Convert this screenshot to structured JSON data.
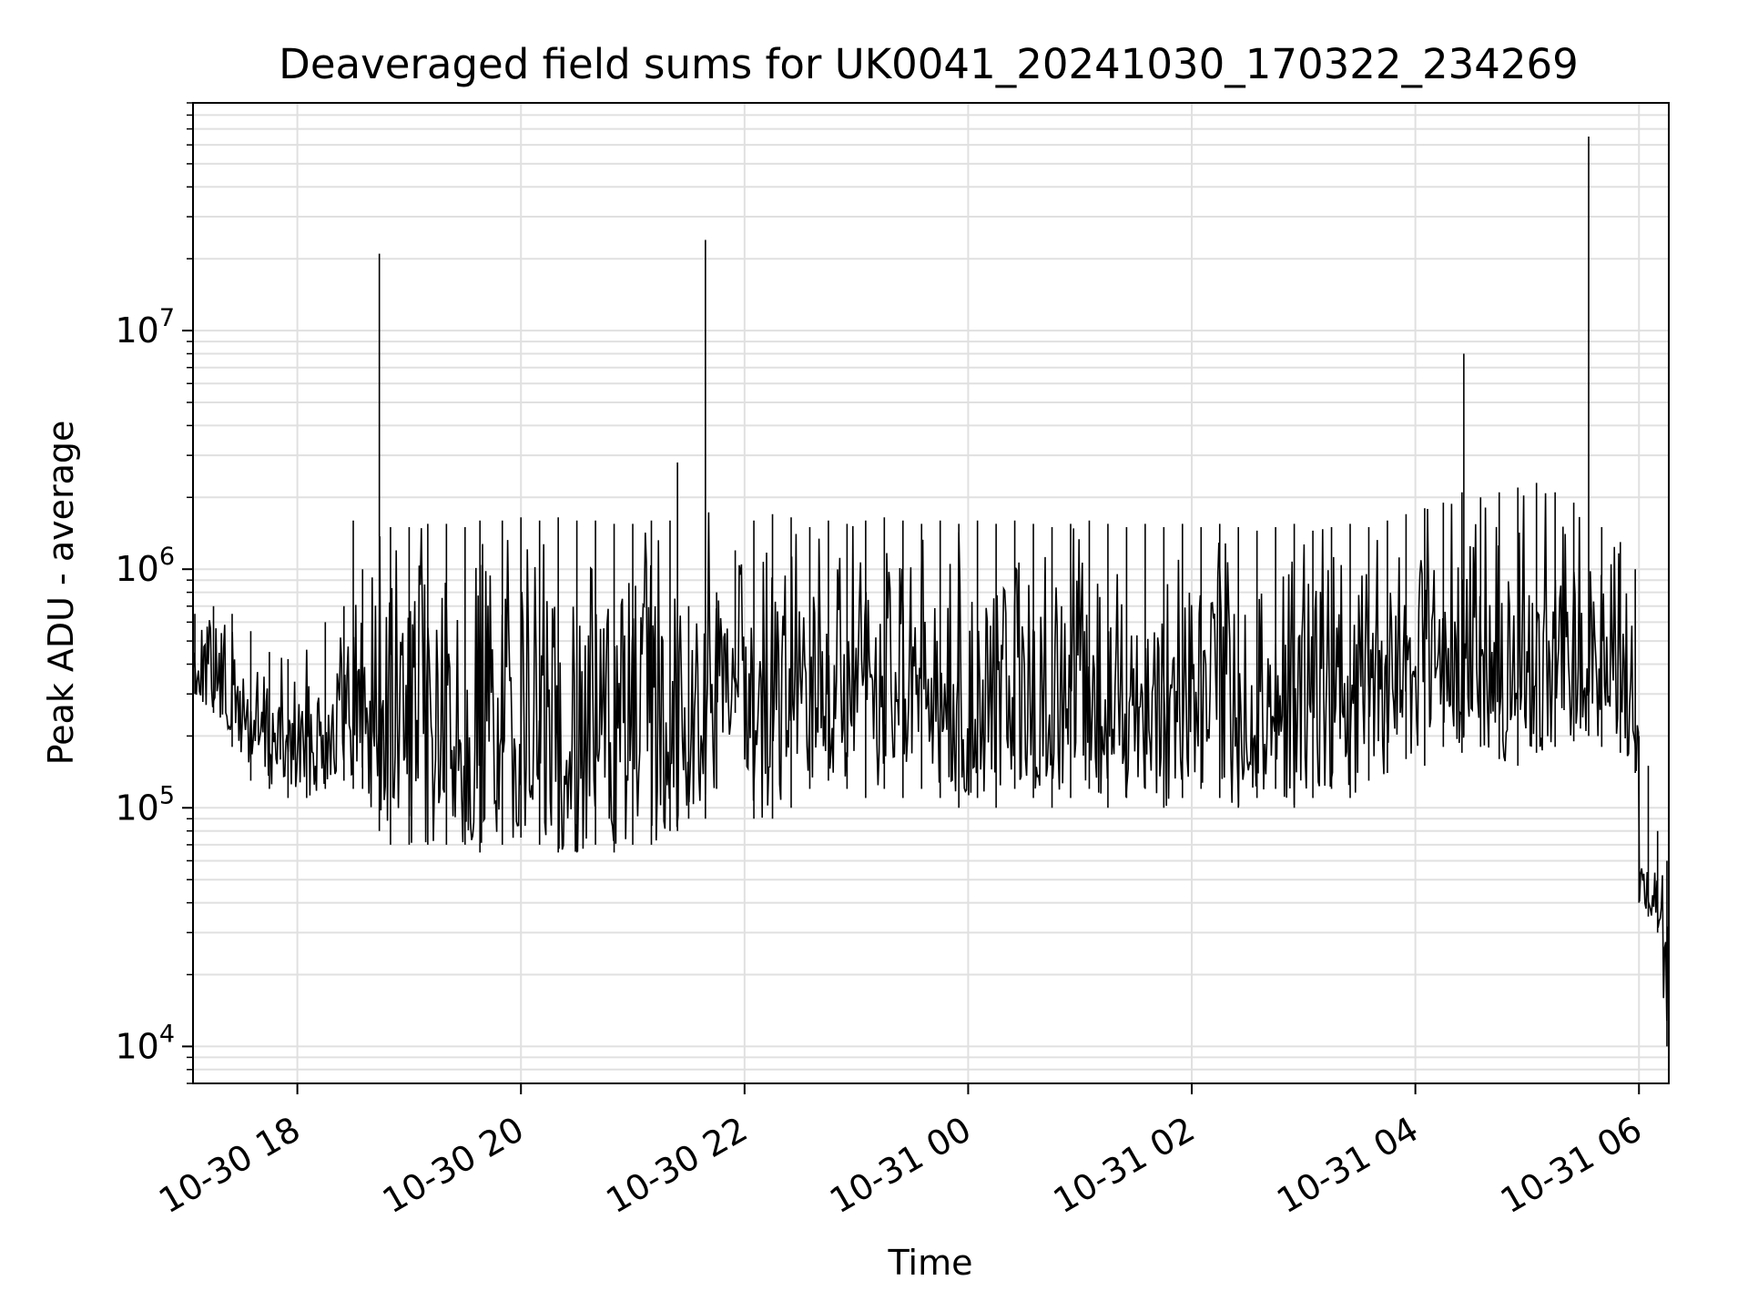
{
  "chart_data": {
    "type": "line",
    "title": "Deaveraged field sums for UK0041_20241030_170322_234269",
    "xlabel": "Time",
    "ylabel": "Peak ADU - average",
    "yscale": "log",
    "grid": true,
    "line_color": "#000000",
    "grid_color": "#e0e0e0",
    "xlim": [
      "2024-10-30 17:04",
      "2024-10-31 06:16"
    ],
    "ylim": [
      7000,
      90000000
    ],
    "x_ticks": [
      {
        "label": "10-30 18",
        "t": "2024-10-30 18:00"
      },
      {
        "label": "10-30 20",
        "t": "2024-10-30 20:00"
      },
      {
        "label": "10-30 22",
        "t": "2024-10-30 22:00"
      },
      {
        "label": "10-31 00",
        "t": "2024-10-31 00:00"
      },
      {
        "label": "10-31 02",
        "t": "2024-10-31 02:00"
      },
      {
        "label": "10-31 04",
        "t": "2024-10-31 04:00"
      },
      {
        "label": "10-31 06",
        "t": "2024-10-31 06:00"
      }
    ],
    "y_ticks": [
      {
        "base": "10",
        "exp": "4",
        "value": 10000
      },
      {
        "base": "10",
        "exp": "5",
        "value": 100000
      },
      {
        "base": "10",
        "exp": "6",
        "value": 1000000
      },
      {
        "base": "10",
        "exp": "7",
        "value": 10000000
      }
    ],
    "series": [
      {
        "x": [
          "2024-10-30 17:05",
          "2024-10-30 17:15",
          "2024-10-30 17:25",
          "2024-10-30 17:35",
          "2024-10-30 17:45",
          "2024-10-30 17:55",
          "2024-10-30 18:05",
          "2024-10-30 18:15",
          "2024-10-30 18:25",
          "2024-10-30 18:30",
          "2024-10-30 18:35",
          "2024-10-30 18:44",
          "2024-10-30 18:50",
          "2024-10-30 19:00",
          "2024-10-30 19:10",
          "2024-10-30 19:20",
          "2024-10-30 19:30",
          "2024-10-30 19:38",
          "2024-10-30 19:50",
          "2024-10-30 20:00",
          "2024-10-30 20:10",
          "2024-10-30 20:20",
          "2024-10-30 20:30",
          "2024-10-30 20:40",
          "2024-10-30 20:50",
          "2024-10-30 21:00",
          "2024-10-30 21:10",
          "2024-10-30 21:20",
          "2024-10-30 21:24",
          "2024-10-30 21:30",
          "2024-10-30 21:39",
          "2024-10-30 21:45",
          "2024-10-30 21:55",
          "2024-10-30 22:05",
          "2024-10-30 22:15",
          "2024-10-30 22:25",
          "2024-10-30 22:35",
          "2024-10-30 22:45",
          "2024-10-30 22:55",
          "2024-10-30 23:05",
          "2024-10-30 23:15",
          "2024-10-30 23:25",
          "2024-10-30 23:35",
          "2024-10-30 23:45",
          "2024-10-30 23:55",
          "2024-10-31 00:05",
          "2024-10-31 00:15",
          "2024-10-31 00:25",
          "2024-10-31 00:35",
          "2024-10-31 00:45",
          "2024-10-31 00:55",
          "2024-10-31 01:05",
          "2024-10-31 01:15",
          "2024-10-31 01:25",
          "2024-10-31 01:35",
          "2024-10-31 01:45",
          "2024-10-31 01:55",
          "2024-10-31 02:05",
          "2024-10-31 02:15",
          "2024-10-31 02:25",
          "2024-10-31 02:35",
          "2024-10-31 02:45",
          "2024-10-31 02:55",
          "2024-10-31 03:05",
          "2024-10-31 03:15",
          "2024-10-31 03:25",
          "2024-10-31 03:35",
          "2024-10-31 03:45",
          "2024-10-31 03:55",
          "2024-10-31 04:05",
          "2024-10-31 04:15",
          "2024-10-31 04:25",
          "2024-10-31 04:26",
          "2024-10-31 04:35",
          "2024-10-31 04:45",
          "2024-10-31 04:55",
          "2024-10-31 05:05",
          "2024-10-31 05:15",
          "2024-10-31 05:25",
          "2024-10-31 05:33",
          "2024-10-31 05:40",
          "2024-10-31 05:50",
          "2024-10-31 05:58",
          "2024-10-31 06:00",
          "2024-10-31 06:05",
          "2024-10-31 06:10",
          "2024-10-31 06:15"
        ],
        "y": [
          400000,
          380000,
          300000,
          250000,
          220000,
          200000,
          210000,
          260000,
          300000,
          1600000,
          250000,
          21000000,
          300000,
          200000,
          150000,
          180000,
          160000,
          150000,
          200000,
          220000,
          200000,
          230000,
          250000,
          220000,
          230000,
          250000,
          240000,
          300000,
          2800000,
          450000,
          24000000,
          500000,
          600000,
          800000,
          700000,
          750000,
          650000,
          700000,
          720000,
          680000,
          750000,
          700000,
          650000,
          700000,
          680000,
          700000,
          650000,
          660000,
          640000,
          620000,
          640000,
          650000,
          630000,
          600000,
          640000,
          620000,
          650000,
          600000,
          620000,
          610000,
          590000,
          600000,
          630000,
          580000,
          600000,
          620000,
          610000,
          650000,
          700000,
          750000,
          800000,
          900000,
          8000000,
          850000,
          800000,
          750000,
          700000,
          650000,
          650000,
          65000000,
          500000,
          420000,
          380000,
          60000,
          50000,
          45000,
          30000
        ],
        "y_low": [
          300000,
          250000,
          180000,
          130000,
          120000,
          110000,
          110000,
          120000,
          130000,
          120000,
          120000,
          80000,
          70000,
          70000,
          70000,
          70000,
          70000,
          65000,
          70000,
          75000,
          70000,
          65000,
          65000,
          70000,
          65000,
          70000,
          70000,
          80000,
          80000,
          90000,
          90000,
          120000,
          250000,
          90000,
          90000,
          100000,
          120000,
          130000,
          120000,
          110000,
          120000,
          110000,
          120000,
          110000,
          100000,
          110000,
          100000,
          120000,
          110000,
          100000,
          110000,
          120000,
          100000,
          110000,
          120000,
          100000,
          110000,
          120000,
          110000,
          100000,
          110000,
          120000,
          100000,
          110000,
          120000,
          110000,
          130000,
          140000,
          160000,
          150000,
          180000,
          170000,
          200000,
          180000,
          160000,
          150000,
          170000,
          180000,
          190000,
          200000,
          180000,
          170000,
          140000,
          40000,
          35000,
          30000,
          10000
        ],
        "y_high": [
          650000,
          700000,
          650000,
          550000,
          450000,
          420000,
          460000,
          600000,
          700000,
          1600000,
          1000000,
          21000000,
          1500000,
          1500000,
          1550000,
          1550000,
          1500000,
          1600000,
          1600000,
          1650000,
          1600000,
          1650000,
          1600000,
          1600000,
          1550000,
          1550000,
          1600000,
          1600000,
          2800000,
          700000,
          24000000,
          800000,
          1200000,
          1600000,
          1700000,
          1650000,
          1500000,
          1600000,
          1550000,
          1600000,
          1650000,
          1600000,
          1550000,
          1600000,
          1550000,
          1600000,
          1550000,
          1600000,
          1550000,
          1500000,
          1550000,
          1600000,
          1550000,
          1500000,
          1550000,
          1500000,
          1550000,
          1500000,
          1550000,
          1500000,
          1450000,
          1500000,
          1550000,
          1450000,
          1500000,
          1550000,
          1500000,
          1600000,
          1700000,
          1800000,
          1900000,
          2100000,
          8000000,
          2000000,
          2100000,
          2200000,
          2300000,
          2100000,
          1900000,
          65000000,
          1500000,
          1300000,
          1000000,
          200000,
          150000,
          80000,
          60000
        ]
      }
    ]
  }
}
